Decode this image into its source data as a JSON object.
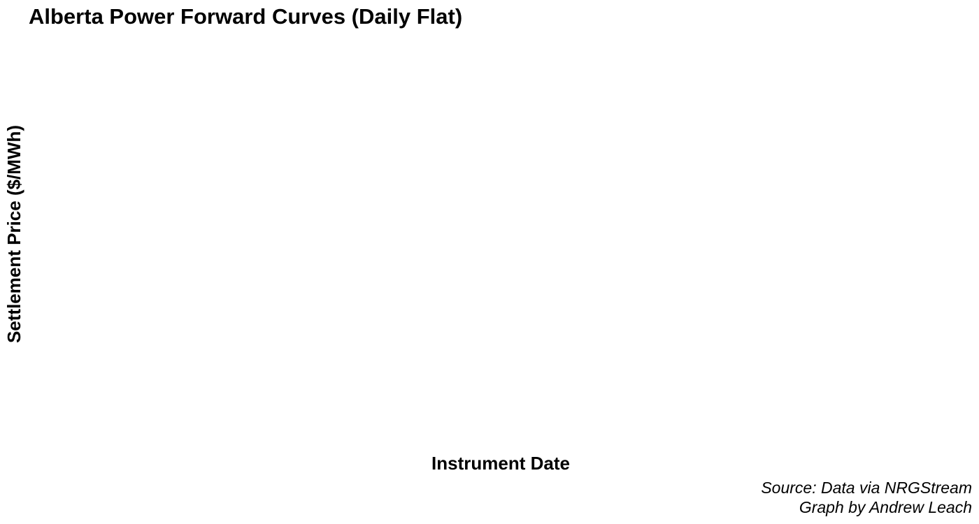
{
  "chart_data": {
    "type": "line",
    "title": "Alberta Power Forward Curves (Daily Flat)",
    "xlabel": "Instrument Date",
    "ylabel": "Settlement Price ($/MWh)",
    "series": [],
    "grid": false,
    "legend": "none",
    "caption": {
      "line1": "Source: Data via NRGStream",
      "line2": "Graph by Andrew Leach"
    }
  }
}
